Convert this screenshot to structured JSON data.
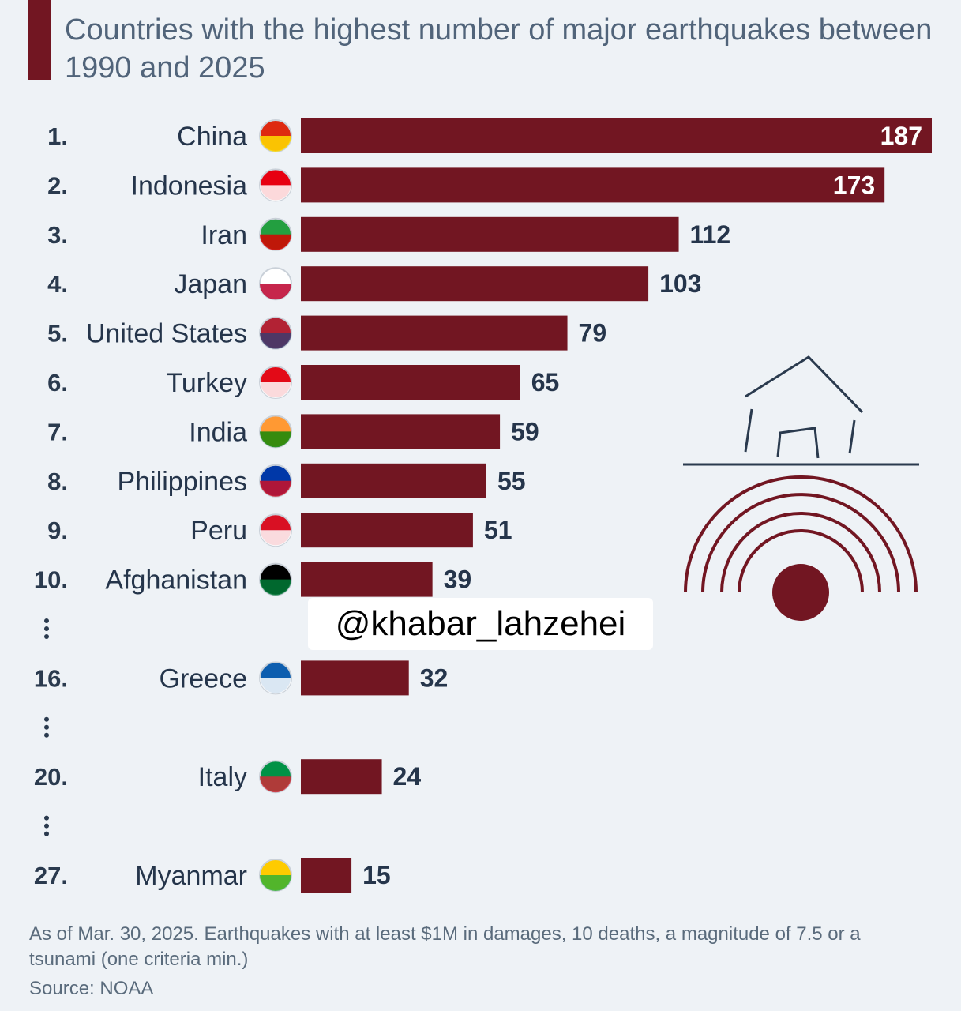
{
  "title": "Countries with the highest number of major earthquakes between 1990 and 2025",
  "watermark": "@khabar_lahzehei",
  "note": "As of Mar. 30, 2025. Earthquakes with at least $1M in damages, 10 deaths, a magnitude of 7.5 or a tsunami (one criteria min.)",
  "source": "Source: NOAA",
  "colors": {
    "bar": "#721622",
    "text": "#25354b",
    "background": "#eef2f6"
  },
  "chart_data": {
    "type": "bar",
    "orientation": "horizontal",
    "title": "Countries with the highest number of major earthquakes between 1990 and 2025",
    "categories": [
      "China",
      "Indonesia",
      "Iran",
      "Japan",
      "United States",
      "Turkey",
      "India",
      "Philippines",
      "Peru",
      "Afghanistan",
      "Greece",
      "Italy",
      "Myanmar"
    ],
    "ranks": [
      "1.",
      "2.",
      "3.",
      "4.",
      "5.",
      "6.",
      "7.",
      "8.",
      "9.",
      "10.",
      "16.",
      "20.",
      "27."
    ],
    "values": [
      187,
      173,
      112,
      103,
      79,
      65,
      59,
      55,
      51,
      39,
      32,
      24,
      15
    ],
    "gaps_after": [
      "10.",
      "16.",
      "20."
    ],
    "xlim": [
      0,
      187
    ],
    "grid": false,
    "legend": "none"
  }
}
